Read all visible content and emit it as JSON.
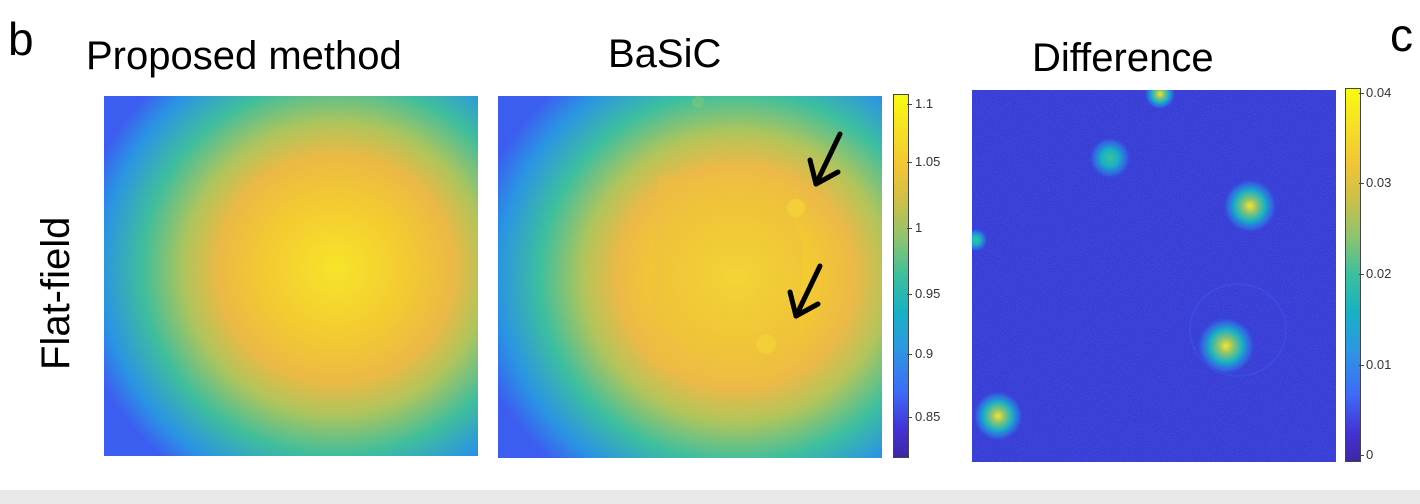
{
  "panel_letters": {
    "b": "b",
    "c": "c"
  },
  "row_label": "Flat-field",
  "panels": [
    {
      "title": "Proposed method"
    },
    {
      "title": "BaSiC"
    },
    {
      "title": "Difference"
    }
  ],
  "colorbar_flatfield": {
    "ticks": [
      "1.1",
      "1.05",
      "1",
      "0.95",
      "0.9",
      "0.85"
    ]
  },
  "colorbar_difference": {
    "ticks": [
      "0.04",
      "0.03",
      "0.02",
      "0.01",
      "0"
    ]
  },
  "colors": {
    "colormap": [
      "#3e26a8",
      "#4433d8",
      "#3d6cf7",
      "#2d97e2",
      "#17b1c5",
      "#3bbf9d",
      "#8bc470",
      "#cbbf4a",
      "#f2c534",
      "#f6df25",
      "#f9fb0e"
    ],
    "arrow": "#000000"
  }
}
